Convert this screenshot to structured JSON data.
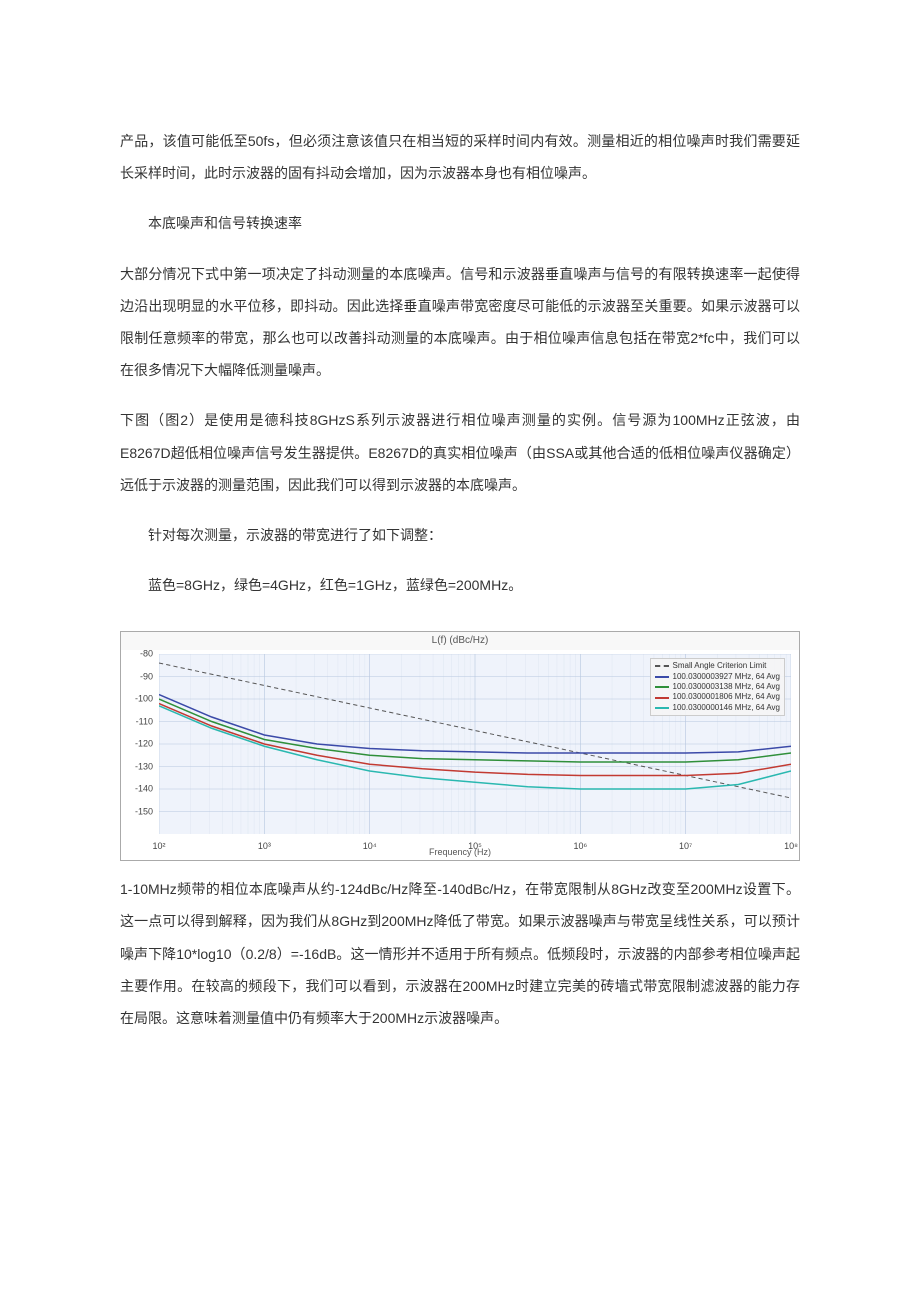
{
  "paragraphs": {
    "p1": "产品，该值可能低至50fs，但必须注意该值只在相当短的采样时间内有效。测量相近的相位噪声时我们需要延长采样时间，此时示波器的固有抖动会增加，因为示波器本身也有相位噪声。",
    "p2": "本底噪声和信号转换速率",
    "p3": "大部分情况下式中第一项决定了抖动测量的本底噪声。信号和示波器垂直噪声与信号的有限转换速率一起使得边沿出现明显的水平位移，即抖动。因此选择垂直噪声带宽密度尽可能低的示波器至关重要。如果示波器可以限制任意频率的带宽，那么也可以改善抖动测量的本底噪声。由于相位噪声信息包括在带宽2*fc中，我们可以在很多情况下大幅降低测量噪声。",
    "p4": "下图（图2）是使用是德科技8GHzS系列示波器进行相位噪声测量的实例。信号源为100MHz正弦波，由E8267D超低相位噪声信号发生器提供。E8267D的真实相位噪声（由SSA或其他合适的低相位噪声仪器确定）远低于示波器的测量范围，因此我们可以得到示波器的本底噪声。",
    "p5": "针对每次测量，示波器的带宽进行了如下调整：",
    "p6": "蓝色=8GHz，绿色=4GHz，红色=1GHz，蓝绿色=200MHz。",
    "p7": "1-10MHz频带的相位本底噪声从约-124dBc/Hz降至-140dBc/Hz，在带宽限制从8GHz改变至200MHz设置下。这一点可以得到解释，因为我们从8GHz到200MHz降低了带宽。如果示波器噪声与带宽呈线性关系，可以预计噪声下降10*log10（0.2/8）=-16dB。这一情形并不适用于所有频点。低频段时，示波器的内部参考相位噪声起主要作用。在较高的频段下，我们可以看到，示波器在200MHz时建立完美的砖墙式带宽限制滤波器的能力存在局限。这意味着测量值中仍有频率大于200MHz示波器噪声。"
  },
  "chart": {
    "type": "line",
    "title_top": "L(f) (dBc/Hz)",
    "xlabel": "Frequency (Hz)",
    "x_scale": "log",
    "x_ticks": [
      "10²",
      "10³",
      "10⁴",
      "10⁵",
      "10⁶",
      "10⁷",
      "10⁸"
    ],
    "x_decades": [
      2,
      3,
      4,
      5,
      6,
      7,
      8
    ],
    "ylim": [
      -160,
      -80
    ],
    "y_ticks": [
      -80,
      -90,
      -100,
      -110,
      -120,
      -130,
      -140,
      -150
    ],
    "background_color": "#eff3fb",
    "grid_color": "#b8c8e0",
    "grid_minor_color": "#d5dfec",
    "series": [
      {
        "name": "Small Angle Criterion Limit",
        "color": "#555555",
        "dash": "4,3",
        "width": 1,
        "points": [
          [
            2,
            -84
          ],
          [
            3,
            -94
          ],
          [
            4,
            -104
          ],
          [
            5,
            -114
          ],
          [
            6,
            -124
          ],
          [
            7,
            -134
          ],
          [
            8,
            -144
          ]
        ]
      },
      {
        "name": "100.0300003927 MHz, 64 Avg",
        "color": "#3b4aa8",
        "width": 1.5,
        "points": [
          [
            2,
            -98
          ],
          [
            2.5,
            -108
          ],
          [
            3,
            -116
          ],
          [
            3.5,
            -120
          ],
          [
            4,
            -122
          ],
          [
            4.5,
            -123
          ],
          [
            5,
            -123.5
          ],
          [
            5.5,
            -124
          ],
          [
            6,
            -124
          ],
          [
            6.5,
            -124
          ],
          [
            7,
            -124
          ],
          [
            7.5,
            -123.5
          ],
          [
            8,
            -121
          ]
        ]
      },
      {
        "name": "100.0300003138 MHz, 64 Avg",
        "color": "#2f8f3a",
        "width": 1.5,
        "points": [
          [
            2,
            -100
          ],
          [
            2.5,
            -110
          ],
          [
            3,
            -118
          ],
          [
            3.5,
            -122
          ],
          [
            4,
            -125
          ],
          [
            4.5,
            -126.5
          ],
          [
            5,
            -127
          ],
          [
            5.5,
            -127.5
          ],
          [
            6,
            -128
          ],
          [
            6.5,
            -128
          ],
          [
            7,
            -128
          ],
          [
            7.5,
            -127
          ],
          [
            8,
            -124
          ]
        ]
      },
      {
        "name": "100.0300001806 MHz, 64 Avg",
        "color": "#c23a32",
        "width": 1.5,
        "points": [
          [
            2,
            -102
          ],
          [
            2.5,
            -112
          ],
          [
            3,
            -120
          ],
          [
            3.5,
            -125
          ],
          [
            4,
            -129
          ],
          [
            4.5,
            -131
          ],
          [
            5,
            -132.5
          ],
          [
            5.5,
            -133.5
          ],
          [
            6,
            -134
          ],
          [
            6.5,
            -134
          ],
          [
            7,
            -134
          ],
          [
            7.5,
            -133
          ],
          [
            8,
            -129
          ]
        ]
      },
      {
        "name": "100.0300000146 MHz, 64 Avg",
        "color": "#2ab8b0",
        "width": 1.5,
        "points": [
          [
            2,
            -103
          ],
          [
            2.5,
            -113
          ],
          [
            3,
            -121
          ],
          [
            3.5,
            -127
          ],
          [
            4,
            -132
          ],
          [
            4.5,
            -135
          ],
          [
            5,
            -137
          ],
          [
            5.5,
            -139
          ],
          [
            6,
            -140
          ],
          [
            6.5,
            -140
          ],
          [
            7,
            -140
          ],
          [
            7.5,
            -138
          ],
          [
            8,
            -132
          ]
        ]
      }
    ],
    "legend_position": "top-right"
  }
}
